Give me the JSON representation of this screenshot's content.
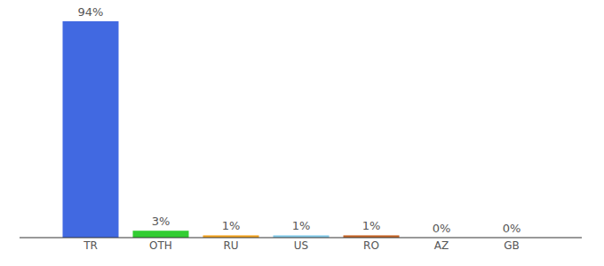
{
  "chart_data": {
    "type": "bar",
    "categories": [
      "TR",
      "OTH",
      "RU",
      "US",
      "RO",
      "AZ",
      "GB"
    ],
    "values": [
      94,
      3,
      1,
      1,
      1,
      0,
      0
    ],
    "value_labels": [
      "94%",
      "3%",
      "1%",
      "1%",
      "1%",
      "0%",
      "0%"
    ],
    "colors": [
      "#4169e1",
      "#32cd32",
      "#f5a623",
      "#87ceeb",
      "#c8682a",
      "#8e6bbf",
      "#d9534f"
    ],
    "ylim": [
      0,
      94
    ],
    "data_labels": true,
    "tick_labels": "x",
    "grid": false
  }
}
